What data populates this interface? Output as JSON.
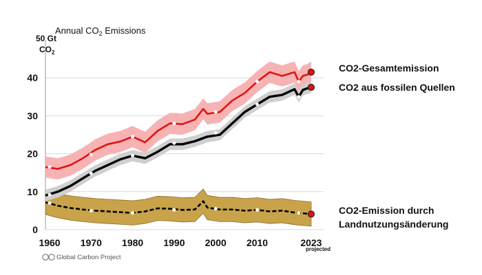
{
  "chart_data": {
    "type": "line",
    "title_prefix": "Annual CO",
    "title_sub": "2",
    "title_suffix": " Emissions",
    "y_unit_line1": "50 Gt",
    "y_unit_line2_prefix": "CO",
    "y_unit_line2_sub": "2",
    "x_tick_labels": [
      "1960",
      "1970",
      "1980",
      "1990",
      "2000",
      "2010",
      "2023"
    ],
    "x_ticks": [
      1960,
      1970,
      1980,
      1990,
      2000,
      2010,
      2023
    ],
    "y_ticks": [
      0,
      10,
      20,
      30,
      40
    ],
    "y_tick_labels": [
      "0",
      "10",
      "20",
      "30",
      "40"
    ],
    "xlim": [
      1959,
      2026
    ],
    "ylim": [
      0,
      50
    ],
    "projected_label": "projected",
    "credit": "Global Carbon Project",
    "credit_icon": "cc-by-icon",
    "colors": {
      "total": "#e21212",
      "total_band": "#f7b3b3",
      "fossil": "#000000",
      "fossil_band": "#cfcfcf",
      "land": "#000000",
      "land_band": "#c9a34a",
      "endpoint": "#e21212"
    },
    "series": [
      {
        "id": "total",
        "name": "CO2-Gesamtemission",
        "x": [
          1959,
          1962,
          1965,
          1968,
          1971,
          1974,
          1977,
          1980,
          1983,
          1986,
          1989,
          1992,
          1995,
          1997,
          1998,
          2001,
          2004,
          2007,
          2010,
          2013,
          2016,
          2019,
          2020,
          2021,
          2022,
          2023
        ],
        "y": [
          16.5,
          16.0,
          17.0,
          18.8,
          21.0,
          22.5,
          23.2,
          24.5,
          23.0,
          26.0,
          28.0,
          27.8,
          29.0,
          31.8,
          30.5,
          31.0,
          34.0,
          36.0,
          39.0,
          41.5,
          40.5,
          41.5,
          39.0,
          40.5,
          40.8,
          41.5
        ],
        "band_half_width": 2.8
      },
      {
        "id": "fossil",
        "name": "CO2 aus fossilen Quellen",
        "x": [
          1959,
          1962,
          1965,
          1968,
          1971,
          1974,
          1977,
          1980,
          1983,
          1986,
          1989,
          1992,
          1995,
          1998,
          2001,
          2004,
          2007,
          2010,
          2013,
          2016,
          2019,
          2020,
          2021,
          2022,
          2023
        ],
        "y": [
          9.0,
          10.0,
          11.5,
          13.5,
          15.5,
          17.0,
          18.5,
          19.5,
          18.8,
          20.5,
          22.5,
          22.5,
          23.3,
          24.5,
          25.0,
          28.0,
          31.0,
          33.0,
          35.0,
          35.5,
          37.0,
          35.0,
          36.8,
          37.2,
          37.5
        ],
        "band_half_width": 1.5
      },
      {
        "id": "land",
        "name_line1": "CO2-Emission durch",
        "name_line2": "Landnutzungsänderung",
        "x": [
          1959,
          1962,
          1965,
          1968,
          1971,
          1974,
          1977,
          1980,
          1983,
          1986,
          1989,
          1992,
          1995,
          1997,
          1998,
          2001,
          2004,
          2007,
          2010,
          2013,
          2016,
          2019,
          2022,
          2023
        ],
        "y": [
          7.2,
          6.3,
          5.7,
          5.3,
          5.0,
          4.8,
          4.6,
          4.4,
          4.8,
          5.6,
          5.5,
          5.2,
          5.3,
          7.5,
          5.8,
          5.3,
          5.3,
          5.0,
          5.2,
          4.8,
          5.0,
          4.5,
          4.2,
          4.1
        ],
        "band_half_width": 3.2
      }
    ],
    "markers": {
      "total": [
        [
          1960,
          16.5
        ],
        [
          1970,
          19.8
        ],
        [
          1980,
          24.5
        ],
        [
          1990,
          28.0
        ],
        [
          2000,
          31.0
        ],
        [
          2010,
          39.0
        ],
        [
          2020,
          39.0
        ]
      ],
      "fossil": [
        [
          1960,
          9.2
        ],
        [
          1970,
          14.8
        ],
        [
          1980,
          19.5
        ],
        [
          1990,
          22.8
        ],
        [
          2000,
          25.5
        ],
        [
          2010,
          33.0
        ],
        [
          2020,
          35.0
        ]
      ],
      "land": [
        [
          1960,
          7.0
        ],
        [
          1970,
          5.0
        ],
        [
          1980,
          4.4
        ],
        [
          1990,
          5.2
        ],
        [
          2000,
          5.5
        ],
        [
          2010,
          5.2
        ],
        [
          2020,
          4.4
        ]
      ]
    }
  }
}
